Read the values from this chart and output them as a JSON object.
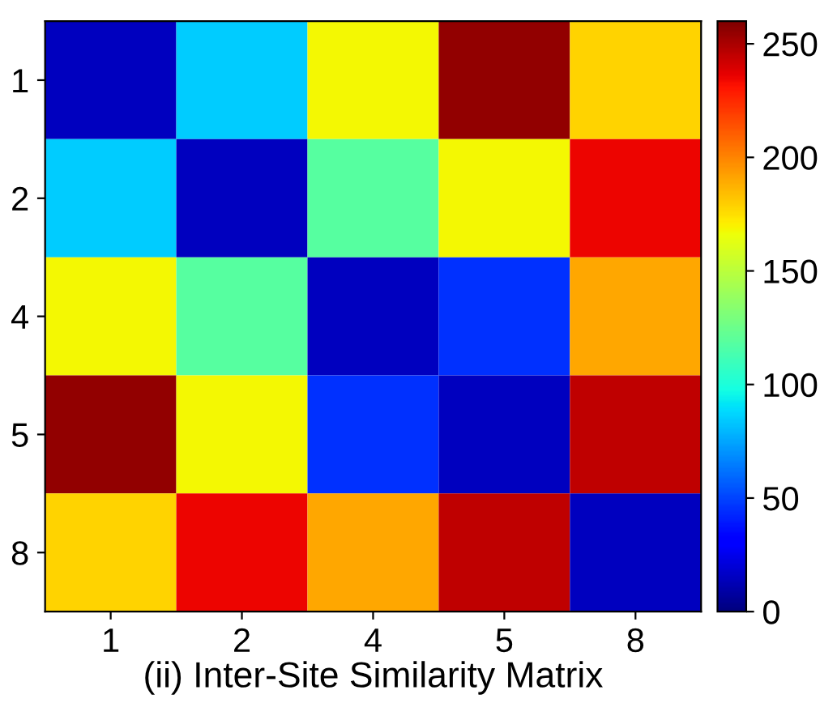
{
  "chart_data": {
    "type": "heatmap",
    "xlabel": "(ii) Inter-Site Similarity Matrix",
    "categories": [
      "1",
      "2",
      "4",
      "5",
      "8"
    ],
    "y_categories": [
      "1",
      "2",
      "4",
      "5",
      "8"
    ],
    "cells": [
      [
        15,
        85,
        168,
        255,
        178
      ],
      [
        85,
        15,
        118,
        168,
        235
      ],
      [
        168,
        118,
        15,
        45,
        190
      ],
      [
        255,
        168,
        45,
        15,
        245
      ],
      [
        178,
        235,
        190,
        245,
        15
      ]
    ],
    "clim": [
      0,
      260
    ],
    "cticks": [
      0,
      50,
      100,
      150,
      200,
      250
    ]
  }
}
